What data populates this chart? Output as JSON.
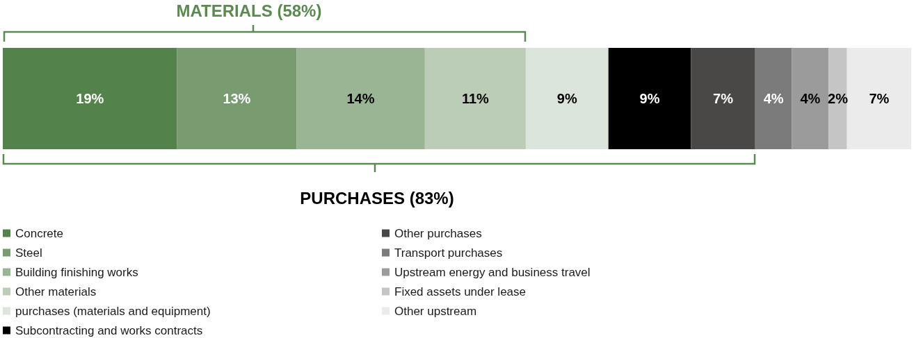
{
  "chart_data": {
    "type": "bar",
    "orientation": "horizontal",
    "stacked": true,
    "categories": [
      null
    ],
    "series": [
      {
        "name": "Concrete",
        "color": "#53834b",
        "values": [
          19
        ],
        "value_labels": [
          "19%"
        ]
      },
      {
        "name": "Steel",
        "color": "#789c70",
        "values": [
          13
        ],
        "value_labels": [
          "13%"
        ]
      },
      {
        "name": "Building finishing works",
        "color": "#9ab594",
        "values": [
          14
        ],
        "value_labels": [
          "14%"
        ]
      },
      {
        "name": "Other materials",
        "color": "#bccdb7",
        "values": [
          11
        ],
        "value_labels": [
          "11%"
        ]
      },
      {
        "name": "purchases (materials and equipment)",
        "color": "#dce5dc",
        "values": [
          9
        ],
        "value_labels": [
          "9%"
        ]
      },
      {
        "name": "Subcontracting and works contracts",
        "color": "#000000",
        "values": [
          9
        ],
        "value_labels": [
          "9%"
        ]
      },
      {
        "name": "Other purchases",
        "color": "#4a4846",
        "values": [
          7
        ],
        "value_labels": [
          "7%"
        ]
      },
      {
        "name": "Transport purchases",
        "color": "#7b7b7b",
        "values": [
          4
        ],
        "value_labels": [
          "4%"
        ]
      },
      {
        "name": "Upstream energy and business travel",
        "color": "#9b9b9b",
        "values": [
          4
        ],
        "value_labels": [
          "4%"
        ]
      },
      {
        "name": "Fixed assets under lease",
        "color": "#c5c5c5",
        "values": [
          2
        ],
        "value_labels": [
          "2%"
        ]
      },
      {
        "name": "Other upstream",
        "color": "#ebebeb",
        "values": [
          7
        ],
        "value_labels": [
          "7%"
        ]
      }
    ],
    "annotations": [
      "MATERIALS (58%)",
      "PURCHASES (83%)"
    ],
    "legend": "bottom left"
  }
}
